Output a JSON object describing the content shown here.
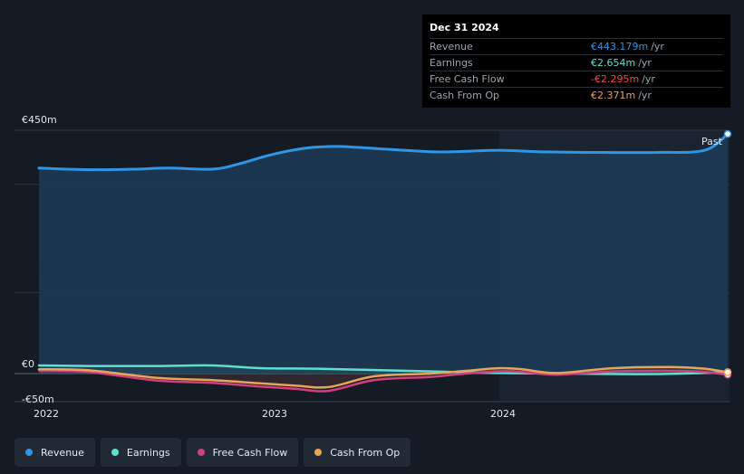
{
  "chart_data": {
    "type": "line",
    "x_labels": [
      "2022",
      "2023",
      "2024"
    ],
    "y_labels": [
      "€450m",
      "€0",
      "-€50m"
    ],
    "ylim": [
      -50,
      450
    ],
    "grid": "horizontal",
    "past_label": "Past",
    "series": [
      {
        "name": "Revenue",
        "color": "#2f95e5",
        "x": [
          2021.98,
          2022.1,
          2022.25,
          2022.4,
          2022.55,
          2022.74,
          2022.85,
          2023.0,
          2023.15,
          2023.3,
          2023.5,
          2023.72,
          2023.85,
          2024.0,
          2024.2,
          2024.45,
          2024.7,
          2024.9,
          2025.0
        ],
        "y": [
          380,
          378,
          377,
          378,
          380,
          378,
          387,
          405,
          417,
          420,
          415,
          410,
          411,
          413,
          410,
          409,
          409,
          413,
          443.179
        ]
      },
      {
        "name": "Earnings",
        "color": "#5de0cf",
        "x": [
          2021.98,
          2022.2,
          2022.5,
          2022.74,
          2022.95,
          2023.2,
          2023.5,
          2023.8,
          2024.0,
          2024.3,
          2024.6,
          2024.8,
          2025.0
        ],
        "y": [
          15,
          14,
          14,
          15,
          10,
          9,
          6,
          3,
          1,
          0,
          -1,
          0,
          2.654
        ]
      },
      {
        "name": "Free Cash Flow",
        "color": "#d0407f",
        "x": [
          2021.98,
          2022.2,
          2022.5,
          2022.74,
          2022.95,
          2023.1,
          2023.25,
          2023.45,
          2023.7,
          2023.85,
          2024.0,
          2024.1,
          2024.25,
          2024.5,
          2024.75,
          2024.9,
          2025.0
        ],
        "y": [
          6,
          3,
          -13,
          -17,
          -24,
          -28,
          -32,
          -12,
          -6,
          0,
          4,
          3,
          -2,
          4,
          5,
          3,
          -2.295
        ]
      },
      {
        "name": "Cash From Op",
        "color": "#e7a559",
        "x": [
          2021.98,
          2022.2,
          2022.5,
          2022.74,
          2022.95,
          2023.1,
          2023.25,
          2023.45,
          2023.7,
          2023.85,
          2024.0,
          2024.1,
          2024.25,
          2024.5,
          2024.75,
          2024.9,
          2025.0
        ],
        "y": [
          8,
          6,
          -8,
          -12,
          -18,
          -22,
          -25,
          -5,
          0,
          5,
          10,
          8,
          1,
          10,
          12,
          9,
          2.371
        ]
      }
    ]
  },
  "tooltip": {
    "date": "Dec 31 2024",
    "rows": [
      {
        "label": "Revenue",
        "value": "€443.179m",
        "unit": "/yr",
        "color": "#2f95e5"
      },
      {
        "label": "Earnings",
        "value": "€2.654m",
        "unit": "/yr",
        "color": "#5de0cf"
      },
      {
        "label": "Free Cash Flow",
        "value": "-€2.295m",
        "unit": "/yr",
        "color": "#ee4b4b"
      },
      {
        "label": "Cash From Op",
        "value": "€2.371m",
        "unit": "/yr",
        "color": "#e7a559"
      }
    ]
  },
  "legend": [
    {
      "label": "Revenue",
      "color": "#2f95e5"
    },
    {
      "label": "Earnings",
      "color": "#5de0cf"
    },
    {
      "label": "Free Cash Flow",
      "color": "#d0407f"
    },
    {
      "label": "Cash From Op",
      "color": "#e7a559"
    }
  ]
}
